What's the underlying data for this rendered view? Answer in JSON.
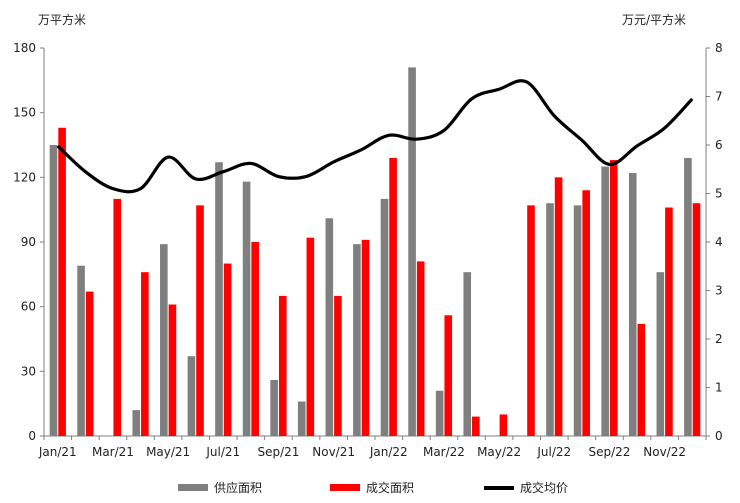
{
  "chart_data": {
    "type": "bar",
    "title": "",
    "y_left_unit": "万平方米",
    "y_right_unit": "万元/平方米",
    "ylim_left": [
      0,
      180
    ],
    "ylim_right": [
      0,
      8
    ],
    "yticks_left": [
      "0",
      "30",
      "60",
      "90",
      "120",
      "150",
      "180"
    ],
    "yticks_right": [
      "0",
      "1",
      "2",
      "3",
      "4",
      "5",
      "6",
      "7",
      "8"
    ],
    "categories": [
      "Jan/21",
      "Feb/21",
      "Mar/21",
      "Apr/21",
      "May/21",
      "Jun/21",
      "Jul/21",
      "Aug/21",
      "Sep/21",
      "Oct/21",
      "Nov/21",
      "Dec/21",
      "Jan/22",
      "Feb/22",
      "Mar/22",
      "Apr/22",
      "May/22",
      "Jun/22",
      "Jul/22",
      "Aug/22",
      "Sep/22",
      "Oct/22",
      "Nov/22",
      "Dec/22"
    ],
    "x_tick_labels": [
      "Jan/21",
      "Mar/21",
      "May/21",
      "Jul/21",
      "Sep/21",
      "Nov/21",
      "Jan/22",
      "Mar/22",
      "May/22",
      "Jul/22",
      "Sep/22",
      "Nov/22"
    ],
    "series": [
      {
        "name": "供应面积",
        "type": "bar",
        "axis": "left",
        "color": "#7f7f7f",
        "values": [
          135,
          79,
          0,
          12,
          89,
          37,
          127,
          118,
          26,
          16,
          101,
          89,
          110,
          171,
          21,
          76,
          0,
          0,
          108,
          107,
          125,
          122,
          76,
          129
        ]
      },
      {
        "name": "成交面积",
        "type": "bar",
        "axis": "left",
        "color": "#ff0000",
        "values": [
          143,
          67,
          110,
          76,
          61,
          107,
          80,
          90,
          65,
          92,
          65,
          91,
          129,
          81,
          56,
          9,
          10,
          107,
          120,
          114,
          128,
          52,
          106,
          108
        ]
      },
      {
        "name": "成交均价",
        "type": "line",
        "axis": "right",
        "color": "#000000",
        "values": [
          5.98,
          5.45,
          5.1,
          5.1,
          5.75,
          5.3,
          5.45,
          5.62,
          5.35,
          5.35,
          5.65,
          5.9,
          6.2,
          6.12,
          6.3,
          6.95,
          7.15,
          7.3,
          6.6,
          6.1,
          5.6,
          5.98,
          6.35,
          6.95
        ]
      }
    ],
    "legend_position": "bottom",
    "grid": false
  }
}
